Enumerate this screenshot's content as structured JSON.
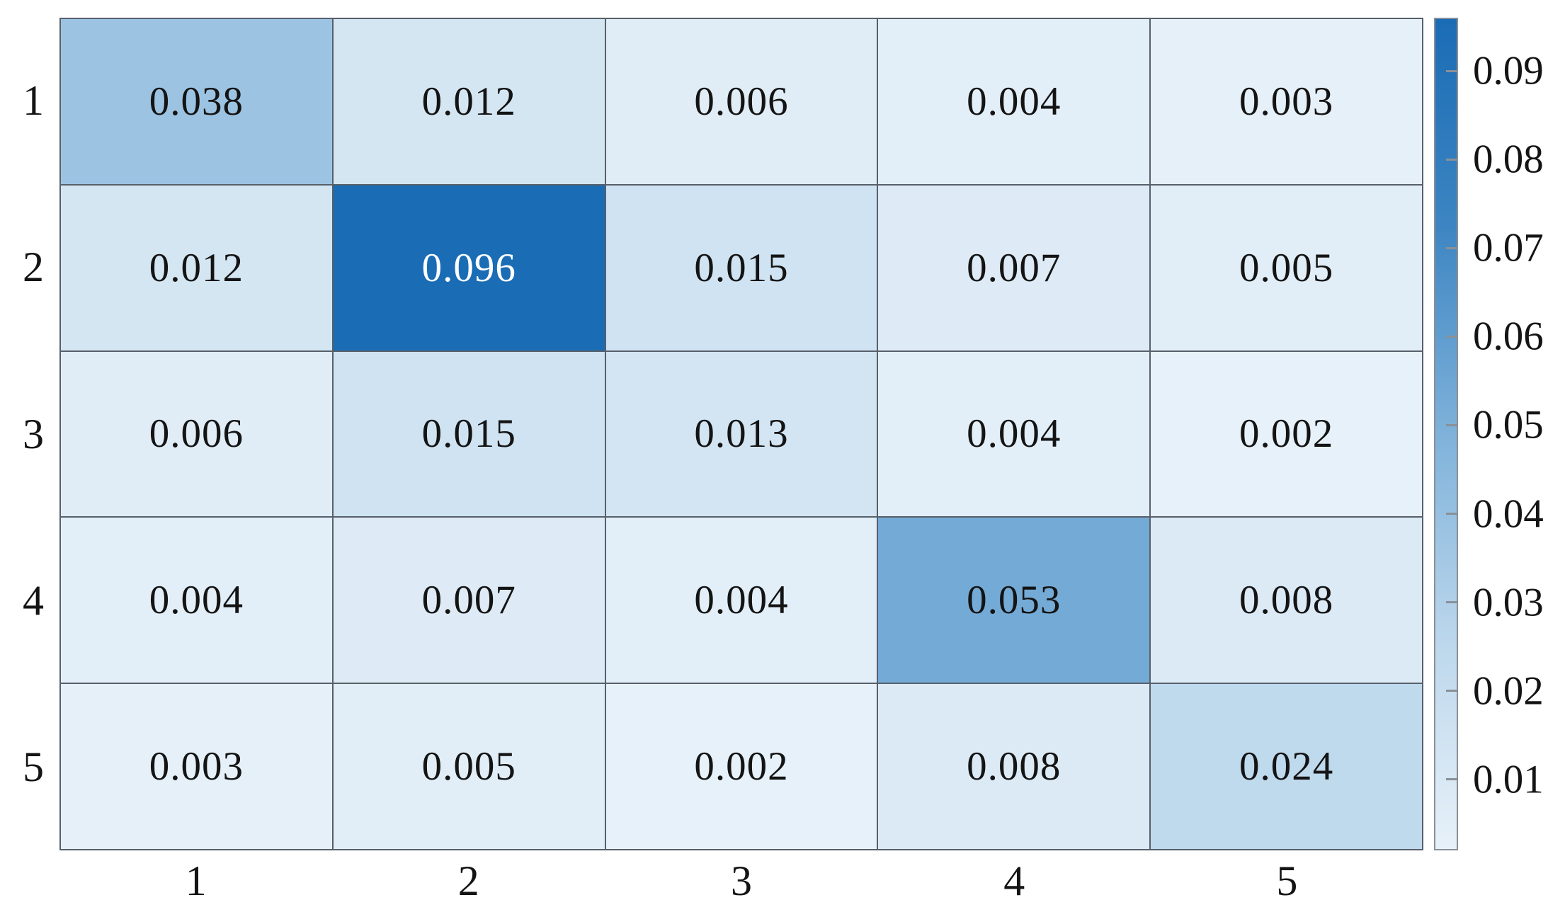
{
  "figure": {
    "background": "#ffffff",
    "grid_line_color": "#57606a",
    "axis_text_color": "#141414",
    "colorbar_border_color": "#8a9098"
  },
  "chart_data": {
    "type": "heatmap",
    "title": "",
    "xlabel": "",
    "ylabel": "",
    "rows": [
      "1",
      "2",
      "3",
      "4",
      "5"
    ],
    "cols": [
      "1",
      "2",
      "3",
      "4",
      "5"
    ],
    "values": [
      [
        0.038,
        0.012,
        0.006,
        0.004,
        0.003
      ],
      [
        0.012,
        0.096,
        0.015,
        0.007,
        0.005
      ],
      [
        0.006,
        0.015,
        0.013,
        0.004,
        0.002
      ],
      [
        0.004,
        0.007,
        0.004,
        0.053,
        0.008
      ],
      [
        0.003,
        0.005,
        0.002,
        0.008,
        0.024
      ]
    ],
    "value_decimals": 3,
    "vmin": 0.002,
    "vmax": 0.096,
    "colormap_stops": [
      "#e7f1f9",
      "#bcd7ec",
      "#7fb2da",
      "#3d85c2",
      "#1a6cb5"
    ],
    "light_text_color": "#ffffff",
    "dark_text_color": "#141414",
    "light_text_threshold": 0.72,
    "colorbar": {
      "position": "right",
      "ticks": [
        0.01,
        0.02,
        0.03,
        0.04,
        0.05,
        0.06,
        0.07,
        0.08,
        0.09
      ],
      "tick_decimals": 2
    },
    "grid_on": true,
    "legend": "none"
  }
}
